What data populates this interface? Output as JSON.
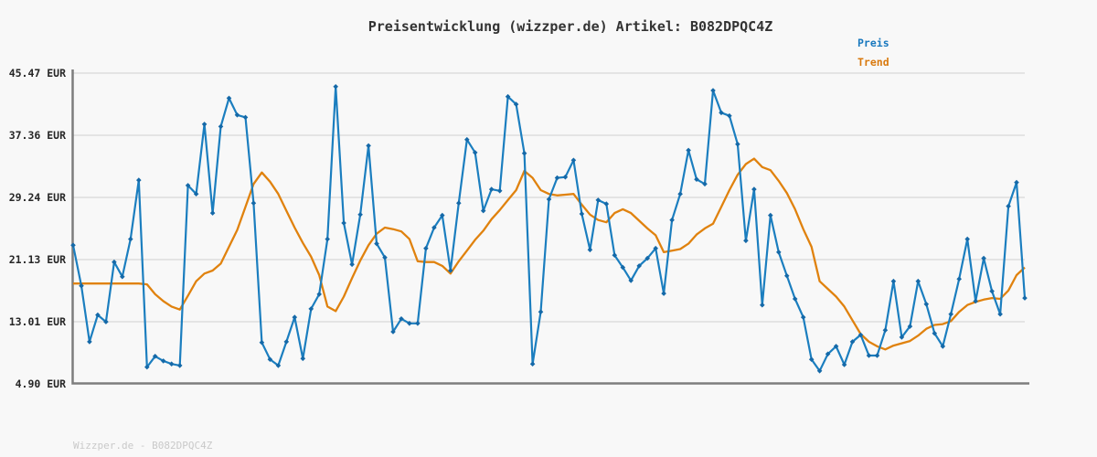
{
  "title": "Preisentwicklung (wizzper.de) Artikel: B082DPQC4Z",
  "footer": "Wizzper.de - B082DPQC4Z",
  "legend": [
    {
      "label": "Preis",
      "color": "#1878be"
    },
    {
      "label": "Trend",
      "color": "#d9790d"
    }
  ],
  "colors": {
    "background": "#f8f8f8",
    "gridline": "#e4e4e4",
    "axis": "#7d7d7d",
    "preis_line": "#1b7ebf",
    "preis_marker": "#1569a8",
    "trend_line": "#e0820e",
    "title_text": "#333333",
    "tick_text": "#262626",
    "footer_text": "#c9c9c9"
  },
  "chart_data": {
    "type": "line",
    "title": "Preisentwicklung (wizzper.de) Artikel: B082DPQC4Z",
    "xlabel": "",
    "ylabel": "",
    "y_unit": "EUR",
    "y_ticks": [
      "45.47 EUR",
      "37.36 EUR",
      "29.24 EUR",
      "21.13 EUR",
      "13.01 EUR",
      "4.90 EUR"
    ],
    "y_tick_values": [
      45.47,
      37.36,
      29.24,
      21.13,
      13.01,
      4.9
    ],
    "ylim": [
      4.9,
      45.47
    ],
    "x_axis_labels_visible": false,
    "grid": "horizontal",
    "legend_position": "top-right",
    "series": [
      {
        "name": "Preis",
        "color": "#1b7ebf",
        "marker": "diamond",
        "values": [
          23.0,
          17.7,
          10.4,
          13.9,
          13.0,
          20.8,
          18.9,
          23.8,
          31.5,
          7.1,
          8.5,
          7.9,
          7.5,
          7.3,
          30.8,
          29.7,
          38.8,
          27.2,
          38.5,
          42.2,
          40.0,
          39.7,
          28.5,
          10.3,
          8.1,
          7.3,
          10.4,
          13.6,
          8.2,
          14.7,
          16.6,
          23.8,
          43.7,
          25.9,
          20.5,
          27.0,
          36.0,
          23.2,
          21.4,
          11.7,
          13.4,
          12.8,
          12.8,
          22.6,
          25.3,
          26.9,
          19.7,
          28.5,
          36.8,
          35.1,
          27.5,
          30.3,
          30.1,
          42.4,
          41.4,
          35.0,
          7.5,
          14.3,
          29.0,
          31.8,
          31.9,
          34.1,
          27.1,
          22.4,
          28.9,
          28.4,
          21.7,
          20.1,
          18.4,
          20.3,
          21.3,
          22.6,
          16.7,
          26.3,
          29.7,
          35.4,
          31.6,
          31.0,
          43.2,
          40.3,
          39.9,
          36.2,
          23.6,
          30.3,
          15.2,
          26.9,
          22.1,
          19.0,
          16.0,
          13.6,
          8.1,
          6.6,
          8.8,
          9.8,
          7.4,
          10.4,
          11.3,
          8.6,
          8.6,
          11.9,
          18.3,
          11.0,
          12.4,
          18.3,
          15.3,
          11.5,
          9.8,
          14.0,
          18.6,
          23.8,
          15.7,
          21.3,
          17.0,
          14.0,
          28.1,
          31.2,
          16.1
        ]
      },
      {
        "name": "Trend",
        "color": "#e0820e",
        "marker": "none",
        "values": [
          18.0,
          18.0,
          18.0,
          18.0,
          18.0,
          18.0,
          18.0,
          18.0,
          18.0,
          17.9,
          16.6,
          15.7,
          15.0,
          14.6,
          16.4,
          18.3,
          19.3,
          19.7,
          20.6,
          22.8,
          25.0,
          28.0,
          31.0,
          32.5,
          31.3,
          29.7,
          27.5,
          25.3,
          23.3,
          21.5,
          19.1,
          15.0,
          14.4,
          16.3,
          18.7,
          21.0,
          23.0,
          24.5,
          25.3,
          25.1,
          24.8,
          23.8,
          20.9,
          20.8,
          20.8,
          20.3,
          19.3,
          20.9,
          22.3,
          23.7,
          24.9,
          26.4,
          27.6,
          28.9,
          30.2,
          32.7,
          31.8,
          30.2,
          29.7,
          29.5,
          29.6,
          29.7,
          28.3,
          27.0,
          26.3,
          26.0,
          27.2,
          27.7,
          27.2,
          26.2,
          25.2,
          24.3,
          22.1,
          22.3,
          22.5,
          23.2,
          24.4,
          25.2,
          25.8,
          28.0,
          30.2,
          32.2,
          33.6,
          34.3,
          33.2,
          32.8,
          31.4,
          29.8,
          27.7,
          25.1,
          22.8,
          18.3,
          17.3,
          16.3,
          15.0,
          13.2,
          11.4,
          10.4,
          9.8,
          9.4,
          9.9,
          10.2,
          10.5,
          11.2,
          12.1,
          12.6,
          12.7,
          13.1,
          14.3,
          15.2,
          15.6,
          15.9,
          16.1,
          16.0,
          17.1,
          19.1,
          20.1
        ]
      }
    ]
  }
}
